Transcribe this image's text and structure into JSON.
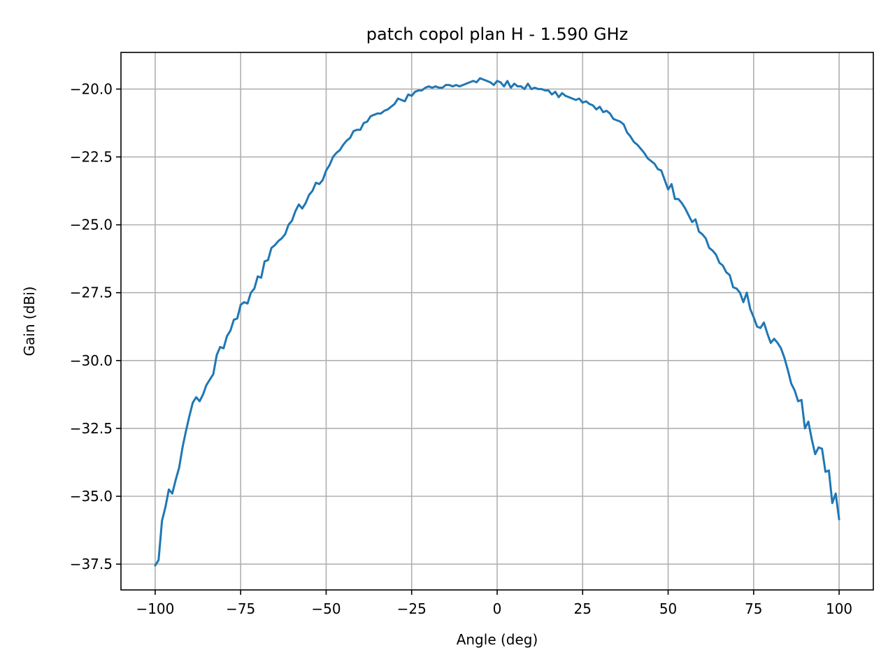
{
  "chart_data": {
    "type": "line",
    "title": "patch copol plan H - 1.590 GHz",
    "xlabel": "Angle (deg)",
    "ylabel": "Gain (dBi)",
    "xlim": [
      -110,
      110
    ],
    "ylim": [
      -38.45,
      -18.65
    ],
    "xticks": [
      -100,
      -75,
      -50,
      -25,
      0,
      25,
      50,
      75,
      100
    ],
    "xtick_labels": [
      "−100",
      "−75",
      "−50",
      "−25",
      "0",
      "25",
      "50",
      "75",
      "100"
    ],
    "yticks": [
      -20.0,
      -22.5,
      -25.0,
      -27.5,
      -30.0,
      -32.5,
      -35.0,
      -37.5
    ],
    "ytick_labels": [
      "−20.0",
      "−22.5",
      "−25.0",
      "−27.5",
      "−30.0",
      "−32.5",
      "−35.0",
      "−37.5"
    ],
    "grid": true,
    "series": [
      {
        "color": "#1f77b4",
        "points": [
          [
            -100,
            -37.55
          ],
          [
            -99,
            -37.35
          ],
          [
            -98,
            -35.9
          ],
          [
            -97,
            -35.4
          ],
          [
            -96,
            -34.75
          ],
          [
            -95,
            -34.9
          ],
          [
            -94,
            -34.4
          ],
          [
            -93,
            -33.95
          ],
          [
            -92,
            -33.2
          ],
          [
            -91,
            -32.6
          ],
          [
            -90,
            -32.05
          ],
          [
            -89,
            -31.55
          ],
          [
            -88,
            -31.35
          ],
          [
            -87,
            -31.5
          ],
          [
            -86,
            -31.25
          ],
          [
            -85,
            -30.9
          ],
          [
            -84,
            -30.7
          ],
          [
            -83,
            -30.5
          ],
          [
            -82,
            -29.8
          ],
          [
            -81,
            -29.5
          ],
          [
            -80,
            -29.55
          ],
          [
            -79,
            -29.1
          ],
          [
            -78,
            -28.9
          ],
          [
            -77,
            -28.5
          ],
          [
            -76,
            -28.45
          ],
          [
            -75,
            -27.95
          ],
          [
            -74,
            -27.85
          ],
          [
            -73,
            -27.9
          ],
          [
            -72,
            -27.5
          ],
          [
            -71,
            -27.35
          ],
          [
            -70,
            -26.9
          ],
          [
            -69,
            -26.95
          ],
          [
            -68,
            -26.35
          ],
          [
            -67,
            -26.3
          ],
          [
            -66,
            -25.85
          ],
          [
            -65,
            -25.75
          ],
          [
            -64,
            -25.6
          ],
          [
            -63,
            -25.5
          ],
          [
            -62,
            -25.35
          ],
          [
            -61,
            -25.0
          ],
          [
            -60,
            -24.85
          ],
          [
            -59,
            -24.5
          ],
          [
            -58,
            -24.25
          ],
          [
            -57,
            -24.4
          ],
          [
            -56,
            -24.2
          ],
          [
            -55,
            -23.9
          ],
          [
            -54,
            -23.75
          ],
          [
            -53,
            -23.45
          ],
          [
            -52,
            -23.5
          ],
          [
            -51,
            -23.35
          ],
          [
            -50,
            -23.0
          ],
          [
            -49,
            -22.8
          ],
          [
            -48,
            -22.5
          ],
          [
            -47,
            -22.35
          ],
          [
            -46,
            -22.25
          ],
          [
            -45,
            -22.05
          ],
          [
            -44,
            -21.9
          ],
          [
            -43,
            -21.8
          ],
          [
            -42,
            -21.55
          ],
          [
            -41,
            -21.5
          ],
          [
            -40,
            -21.5
          ],
          [
            -39,
            -21.25
          ],
          [
            -38,
            -21.2
          ],
          [
            -37,
            -21.0
          ],
          [
            -36,
            -20.95
          ],
          [
            -35,
            -20.9
          ],
          [
            -34,
            -20.9
          ],
          [
            -33,
            -20.8
          ],
          [
            -32,
            -20.75
          ],
          [
            -31,
            -20.65
          ],
          [
            -30,
            -20.55
          ],
          [
            -29,
            -20.35
          ],
          [
            -28,
            -20.4
          ],
          [
            -27,
            -20.45
          ],
          [
            -26,
            -20.2
          ],
          [
            -25,
            -20.25
          ],
          [
            -24,
            -20.1
          ],
          [
            -23,
            -20.05
          ],
          [
            -22,
            -20.05
          ],
          [
            -21,
            -19.95
          ],
          [
            -20,
            -19.9
          ],
          [
            -19,
            -19.95
          ],
          [
            -18,
            -19.9
          ],
          [
            -17,
            -19.95
          ],
          [
            -16,
            -19.95
          ],
          [
            -15,
            -19.85
          ],
          [
            -14,
            -19.85
          ],
          [
            -13,
            -19.9
          ],
          [
            -12,
            -19.85
          ],
          [
            -11,
            -19.9
          ],
          [
            -10,
            -19.85
          ],
          [
            -9,
            -19.8
          ],
          [
            -8,
            -19.75
          ],
          [
            -7,
            -19.7
          ],
          [
            -6,
            -19.75
          ],
          [
            -5,
            -19.6
          ],
          [
            -4,
            -19.65
          ],
          [
            -3,
            -19.7
          ],
          [
            -2,
            -19.75
          ],
          [
            -1,
            -19.85
          ],
          [
            0,
            -19.7
          ],
          [
            1,
            -19.75
          ],
          [
            2,
            -19.9
          ],
          [
            3,
            -19.7
          ],
          [
            4,
            -19.95
          ],
          [
            5,
            -19.8
          ],
          [
            6,
            -19.9
          ],
          [
            7,
            -19.9
          ],
          [
            8,
            -20.0
          ],
          [
            9,
            -19.8
          ],
          [
            10,
            -20.0
          ],
          [
            11,
            -19.95
          ],
          [
            12,
            -20.0
          ],
          [
            13,
            -20.0
          ],
          [
            14,
            -20.05
          ],
          [
            15,
            -20.05
          ],
          [
            16,
            -20.2
          ],
          [
            17,
            -20.1
          ],
          [
            18,
            -20.3
          ],
          [
            19,
            -20.15
          ],
          [
            20,
            -20.25
          ],
          [
            21,
            -20.3
          ],
          [
            22,
            -20.35
          ],
          [
            23,
            -20.4
          ],
          [
            24,
            -20.35
          ],
          [
            25,
            -20.5
          ],
          [
            26,
            -20.45
          ],
          [
            27,
            -20.55
          ],
          [
            28,
            -20.6
          ],
          [
            29,
            -20.75
          ],
          [
            30,
            -20.65
          ],
          [
            31,
            -20.85
          ],
          [
            32,
            -20.8
          ],
          [
            33,
            -20.9
          ],
          [
            34,
            -21.1
          ],
          [
            35,
            -21.15
          ],
          [
            36,
            -21.2
          ],
          [
            37,
            -21.3
          ],
          [
            38,
            -21.6
          ],
          [
            39,
            -21.75
          ],
          [
            40,
            -21.95
          ],
          [
            41,
            -22.05
          ],
          [
            42,
            -22.2
          ],
          [
            43,
            -22.35
          ],
          [
            44,
            -22.55
          ],
          [
            45,
            -22.65
          ],
          [
            46,
            -22.75
          ],
          [
            47,
            -22.95
          ],
          [
            48,
            -23.0
          ],
          [
            49,
            -23.35
          ],
          [
            50,
            -23.7
          ],
          [
            51,
            -23.5
          ],
          [
            52,
            -24.05
          ],
          [
            53,
            -24.05
          ],
          [
            54,
            -24.2
          ],
          [
            55,
            -24.4
          ],
          [
            56,
            -24.65
          ],
          [
            57,
            -24.9
          ],
          [
            58,
            -24.8
          ],
          [
            59,
            -25.25
          ],
          [
            60,
            -25.35
          ],
          [
            61,
            -25.5
          ],
          [
            62,
            -25.85
          ],
          [
            63,
            -25.95
          ],
          [
            64,
            -26.1
          ],
          [
            65,
            -26.4
          ],
          [
            66,
            -26.5
          ],
          [
            67,
            -26.75
          ],
          [
            68,
            -26.85
          ],
          [
            69,
            -27.3
          ],
          [
            70,
            -27.35
          ],
          [
            71,
            -27.5
          ],
          [
            72,
            -27.85
          ],
          [
            73,
            -27.5
          ],
          [
            74,
            -28.1
          ],
          [
            75,
            -28.4
          ],
          [
            76,
            -28.75
          ],
          [
            77,
            -28.8
          ],
          [
            78,
            -28.6
          ],
          [
            79,
            -29.0
          ],
          [
            80,
            -29.35
          ],
          [
            81,
            -29.2
          ],
          [
            82,
            -29.35
          ],
          [
            83,
            -29.55
          ],
          [
            84,
            -29.9
          ],
          [
            85,
            -30.35
          ],
          [
            86,
            -30.85
          ],
          [
            87,
            -31.1
          ],
          [
            88,
            -31.5
          ],
          [
            89,
            -31.45
          ],
          [
            90,
            -32.5
          ],
          [
            91,
            -32.25
          ],
          [
            92,
            -32.9
          ],
          [
            93,
            -33.45
          ],
          [
            94,
            -33.2
          ],
          [
            95,
            -33.25
          ],
          [
            96,
            -34.1
          ],
          [
            97,
            -34.05
          ],
          [
            98,
            -35.25
          ],
          [
            99,
            -34.9
          ],
          [
            100,
            -35.85
          ]
        ]
      }
    ]
  }
}
